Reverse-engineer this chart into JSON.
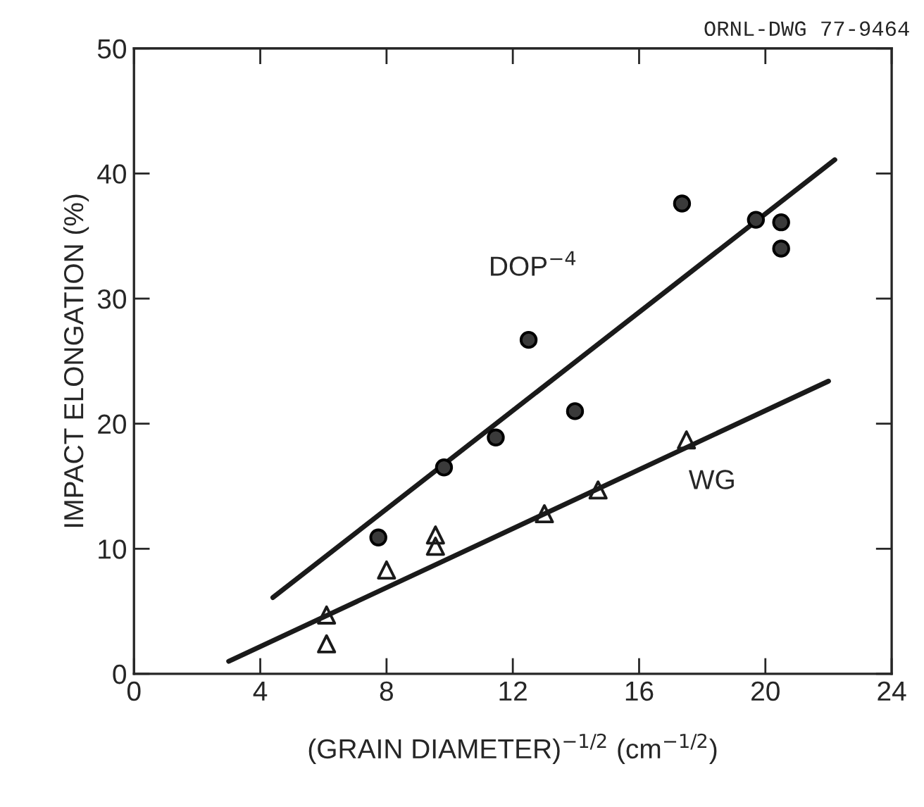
{
  "chart_data": {
    "type": "scatter",
    "xlabel": "(GRAIN DIAMETER)$^{−1/2}$ (cm$^{−1/2}$)",
    "ylabel": "IMPACT ELONGATION (%)",
    "series": [
      {
        "type": "line",
        "name": "DOP$^{−4}$",
        "color": "#1a1a1a",
        "x": [
          4.4,
          22.2
        ],
        "values": [
          6.1,
          41.1
        ],
        "marker": "none"
      },
      {
        "type": "line",
        "name": "WG",
        "color": "#1a1a1a",
        "x": [
          3.0,
          22.0
        ],
        "values": [
          1.0,
          23.4
        ],
        "marker": "none"
      },
      {
        "color": "#3a3a3a",
        "marker": "circle",
        "x": [
          7.74,
          9.82,
          11.46,
          12.5,
          13.97,
          17.36,
          19.7,
          20.5,
          20.5
        ],
        "values": [
          10.9,
          16.5,
          18.9,
          26.7,
          21.0,
          37.6,
          36.3,
          36.1,
          34.0
        ]
      },
      {
        "color": "#1a1a1a",
        "marker": "triangle",
        "x": [
          6.1,
          6.1,
          8.0,
          9.55,
          9.55,
          13.0,
          14.7,
          17.5
        ],
        "values": [
          4.7,
          2.4,
          8.3,
          11.1,
          10.2,
          12.8,
          14.7,
          18.7
        ]
      }
    ],
    "annotations": [
      "ORNL-DWG 77-9464"
    ],
    "xlim": [
      0,
      24
    ],
    "xticks": [
      0,
      4,
      8,
      12,
      16,
      20,
      24
    ],
    "ylim": [
      0,
      50
    ],
    "yticks": [
      0,
      10,
      20,
      30,
      40,
      50
    ],
    "grid": false,
    "legend": false
  }
}
